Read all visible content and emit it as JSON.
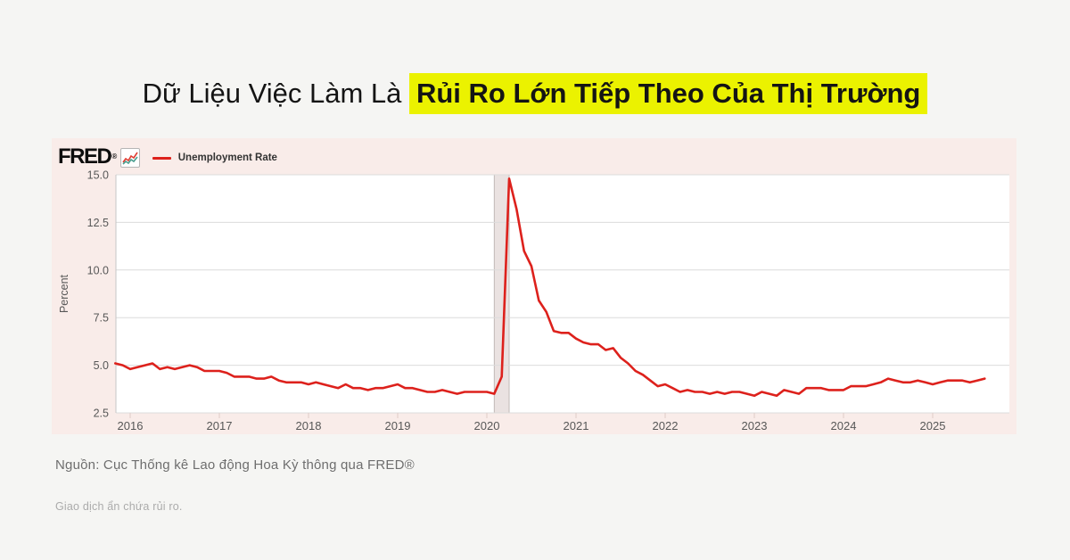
{
  "title": {
    "plain": "Dữ Liệu Việc Làm Là ",
    "highlight": "Rủi Ro Lớn Tiếp Theo Của Thị Trường",
    "highlight_color": "#ebf200"
  },
  "chart": {
    "header": {
      "brand": "FRED",
      "brand_mark": "®",
      "icon": {
        "name": "fred-sparkline-icon",
        "line1_color": "#e03c31",
        "line2_color": "#4a9e8f"
      },
      "legend_label": "Unemployment Rate",
      "legend_color": "#dd211c"
    },
    "colors": {
      "panel_bg": "#f9ece9",
      "plot_bg": "#ffffff",
      "grid": "#dcdcdc",
      "axis_line": "#c6c6c6",
      "line": "#dd211c",
      "recession_fill": "#eae2e1",
      "recession_edge": "#c2b9b7",
      "tick_text": "#575757",
      "x_tick_mark": "#e0ccc7"
    }
  },
  "chart_data": {
    "type": "line",
    "title": "Unemployment Rate",
    "ylabel": "Percent",
    "xlabel": "",
    "ylim": [
      2.5,
      15.0
    ],
    "y_tick_labels": [
      "2.5",
      "5.0",
      "7.5",
      "10.0",
      "12.5",
      "15.0"
    ],
    "x_tick_labels": [
      "2016",
      "2017",
      "2018",
      "2019",
      "2020",
      "2021",
      "2022",
      "2023",
      "2024",
      "2025"
    ],
    "x_start": "2015-11",
    "x_end": "2025-08",
    "frequency": "monthly",
    "grid": "horizontal-only",
    "legend_position": "top-left",
    "recession_band": {
      "start": "2020-02",
      "end": "2020-04"
    },
    "series": [
      {
        "name": "Unemployment Rate",
        "values": [
          5.1,
          5.0,
          4.8,
          4.9,
          5.0,
          5.1,
          4.8,
          4.9,
          4.8,
          4.9,
          5.0,
          4.9,
          4.7,
          4.7,
          4.7,
          4.6,
          4.4,
          4.4,
          4.4,
          4.3,
          4.3,
          4.4,
          4.2,
          4.1,
          4.1,
          4.1,
          4.0,
          4.1,
          4.0,
          3.9,
          3.8,
          4.0,
          3.8,
          3.8,
          3.7,
          3.8,
          3.8,
          3.9,
          4.0,
          3.8,
          3.8,
          3.7,
          3.6,
          3.6,
          3.7,
          3.6,
          3.5,
          3.6,
          3.6,
          3.6,
          3.6,
          3.5,
          4.4,
          14.8,
          13.2,
          11.0,
          10.2,
          8.4,
          7.8,
          6.8,
          6.7,
          6.7,
          6.4,
          6.2,
          6.1,
          6.1,
          5.8,
          5.9,
          5.4,
          5.1,
          4.7,
          4.5,
          4.2,
          3.9,
          4.0,
          3.8,
          3.6,
          3.7,
          3.6,
          3.6,
          3.5,
          3.6,
          3.5,
          3.6,
          3.6,
          3.5,
          3.4,
          3.6,
          3.5,
          3.4,
          3.7,
          3.6,
          3.5,
          3.8,
          3.8,
          3.8,
          3.7,
          3.7,
          3.7,
          3.9,
          3.9,
          3.9,
          4.0,
          4.1,
          4.3,
          4.2,
          4.1,
          4.1,
          4.2,
          4.1,
          4.0,
          4.1,
          4.2,
          4.2,
          4.2,
          4.1,
          4.2,
          4.3
        ]
      }
    ]
  },
  "footer": {
    "source": "Nguồn: Cục Thống kê Lao động Hoa Kỳ thông qua FRED®",
    "disclaimer": "Giao dịch ẩn chứa rủi ro."
  }
}
